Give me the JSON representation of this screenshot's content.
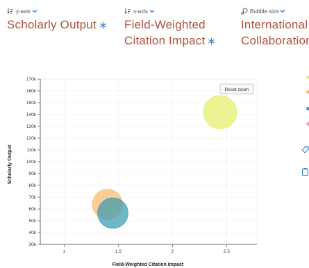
{
  "selectors": {
    "y": {
      "caption": "y-axis",
      "title": "Scholarly Output"
    },
    "x": {
      "caption": "x-axis",
      "title": "Field-Weighted Citation Impact"
    },
    "bubble": {
      "caption": "Bubble size",
      "title": "International Collaboration"
    }
  },
  "reset_zoom_label": "Reset zoom",
  "colors": {
    "title": "#b0523d",
    "accent": "#2a7fd6",
    "legend_dots": [
      "#e4ef6a",
      "#f8bb6e",
      "#3c9bb2",
      "#f2a3b8"
    ]
  },
  "chart_data": {
    "type": "scatter",
    "xlabel": "Field-Weighted Citation Impact",
    "ylabel": "Scholarly Output",
    "xlim": [
      0.78,
      2.78
    ],
    "ylim": [
      30000,
      170000
    ],
    "x_ticks": [
      1,
      1.5,
      2,
      2.5
    ],
    "x_tick_labels": [
      "1",
      "1.5",
      "2",
      "2.5"
    ],
    "y_ticks": [
      30000,
      40000,
      50000,
      60000,
      70000,
      80000,
      90000,
      100000,
      110000,
      120000,
      130000,
      140000,
      150000,
      160000,
      170000
    ],
    "y_tick_labels": [
      "30k",
      "40k",
      "50k",
      "60k",
      "70k",
      "80k",
      "90k",
      "100k",
      "110k",
      "120k",
      "130k",
      "140k",
      "150k",
      "160k",
      "170k"
    ],
    "grid": true,
    "series": [
      {
        "x": 2.44,
        "y": 142000,
        "size": 1.0,
        "color": "#e4ef6a"
      },
      {
        "x": 1.4,
        "y": 64000,
        "size": 0.81,
        "color": "#f8bb6e"
      },
      {
        "x": 1.45,
        "y": 56500,
        "size": 0.83,
        "color": "#3c9bb2"
      }
    ]
  }
}
